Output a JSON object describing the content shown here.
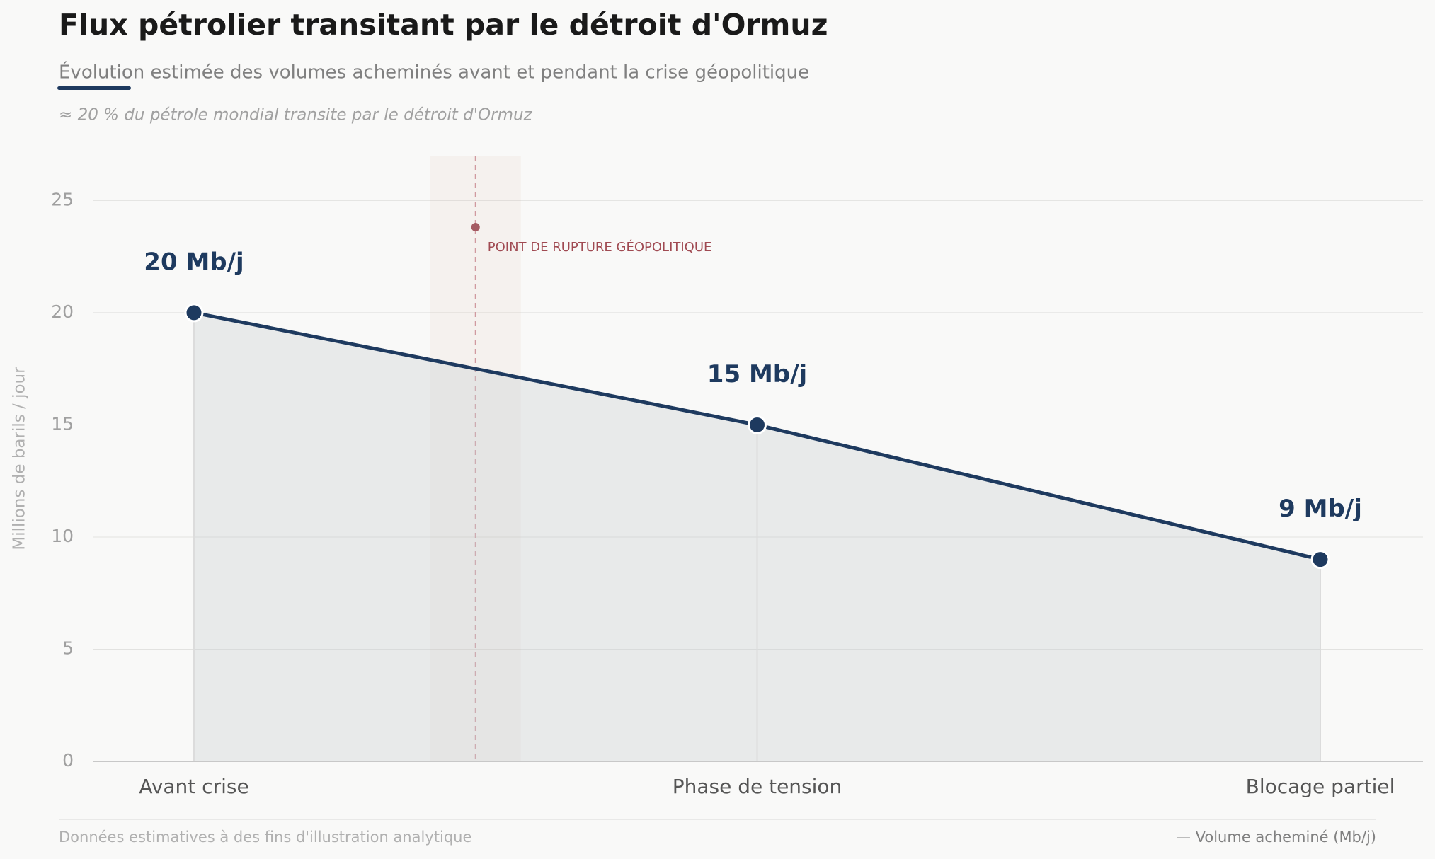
{
  "chart_data": {
    "type": "line",
    "title": "Flux pétrolier transitant par le détroit d'Ormuz",
    "subtitle": "Évolution estimée des volumes acheminés avant et pendant la crise géopolitique",
    "note": "≈ 20 % du pétrole mondial transite par le détroit d'Ormuz",
    "y_label": "Millions de barils / jour",
    "categories": [
      "Avant crise",
      "Phase de tension",
      "Blocage partiel"
    ],
    "series": [
      {
        "name": "— Volume acheminé (Mb/j)",
        "color": "#1e3a5f",
        "values": [
          20,
          15,
          9
        ],
        "value_labels": [
          "20 Mb/j",
          "15 Mb/j",
          "9 Mb/j"
        ]
      }
    ],
    "annotation": "POINT DE RUPTURE GÉOPOLITIQUE",
    "ylim": [
      0,
      27
    ],
    "yticks": [
      0,
      5,
      10,
      15,
      20,
      25
    ],
    "grid": true,
    "footer": "Données estimatives à des fins d'illustration analytique"
  }
}
